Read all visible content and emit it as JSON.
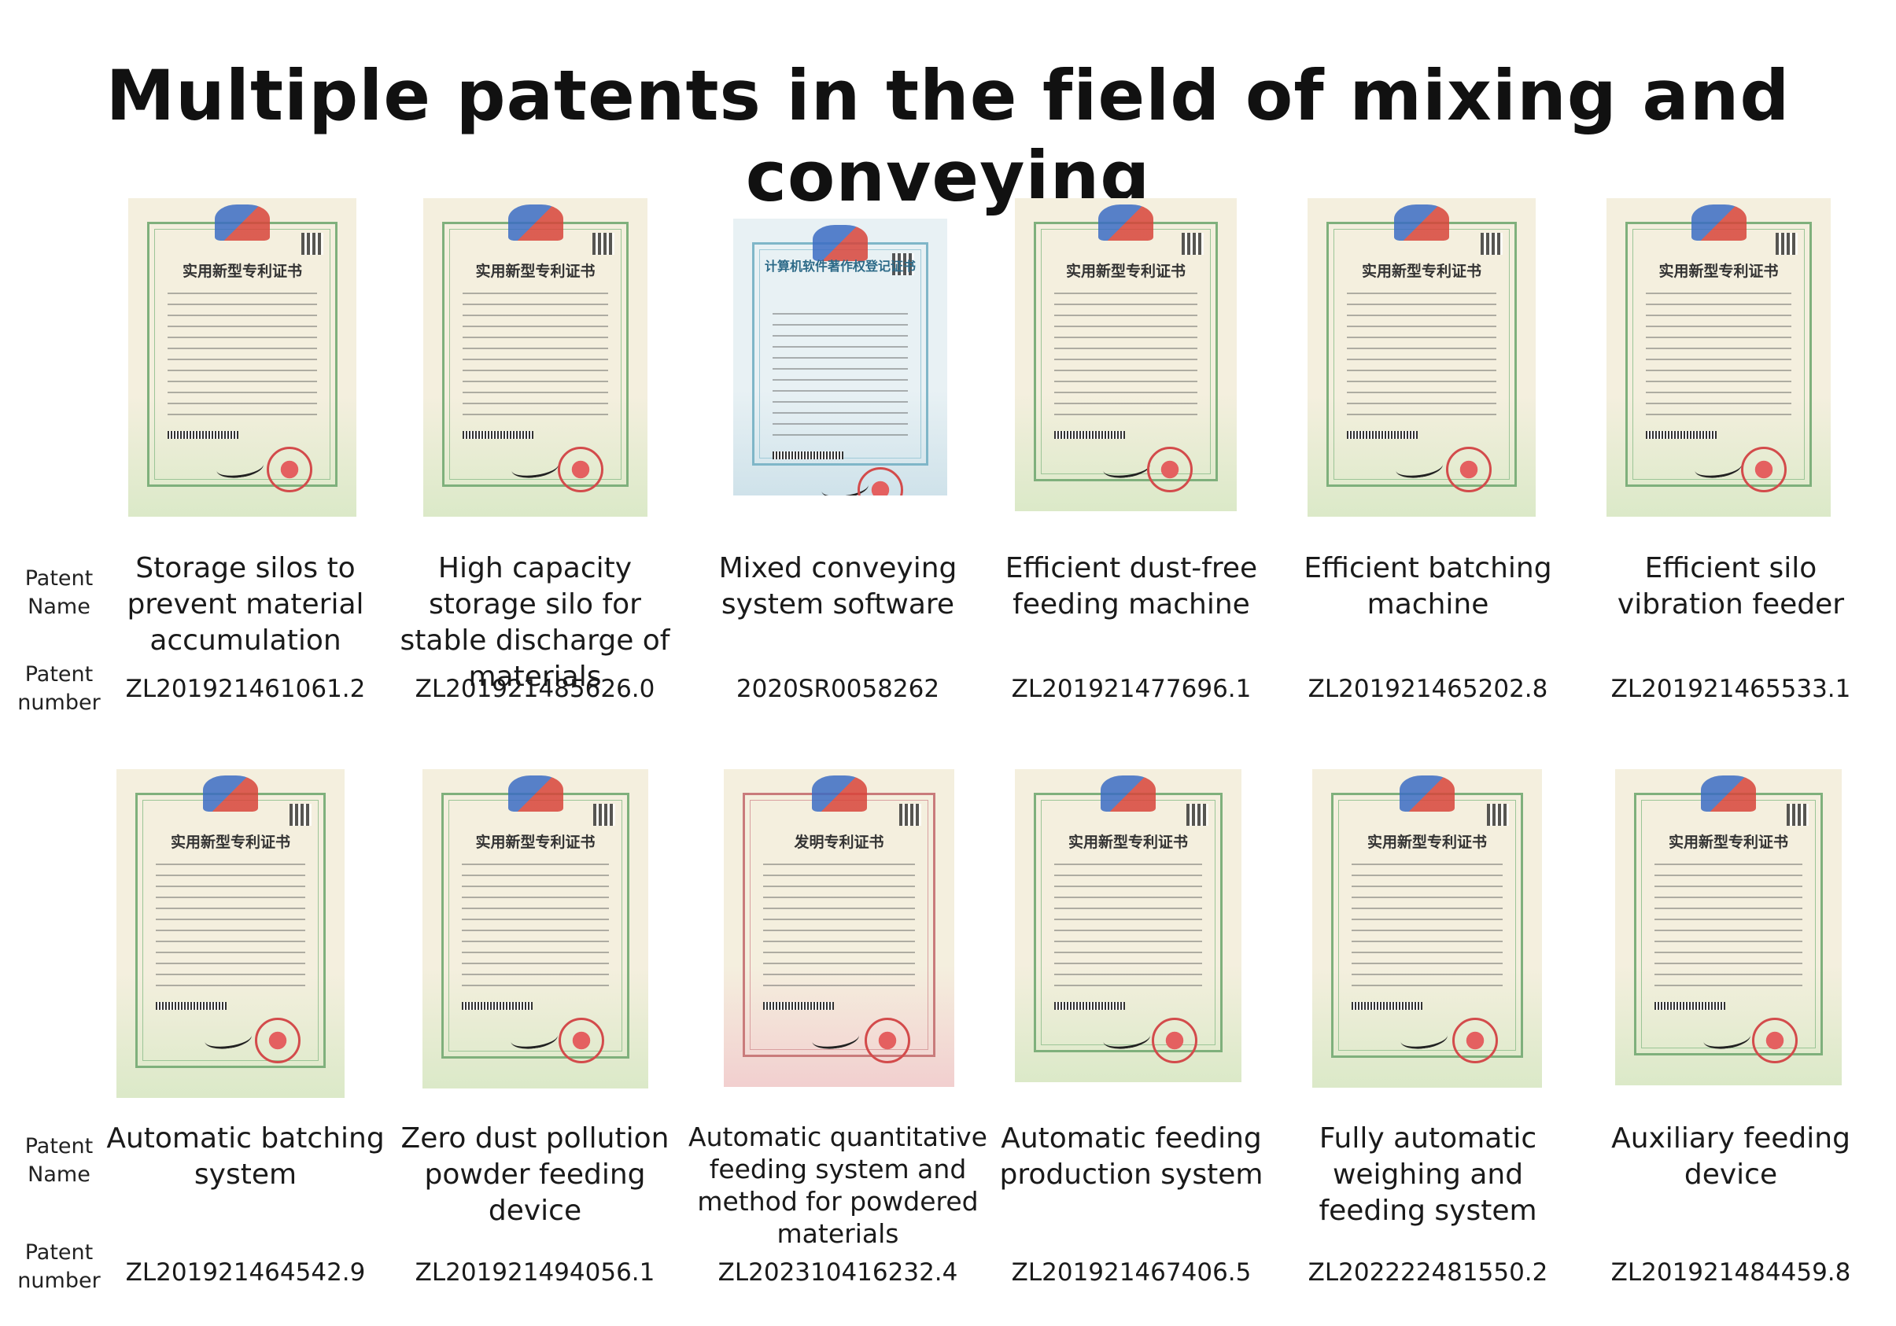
{
  "title": "Multiple patents in the field of mixing and conveying",
  "labels": {
    "name_line1": "Patent",
    "name_line2": "Name",
    "number_line1": "Patent",
    "number_line2": "number"
  },
  "patents": [
    {
      "name": "Storage silos to prevent material accumulation",
      "number": "ZL201921461061.2",
      "cert_title": "实用新型专利证书",
      "cert_style": "utility"
    },
    {
      "name": "High capacity storage silo for stable discharge of materials",
      "number": "ZL201921485626.0",
      "cert_title": "实用新型专利证书",
      "cert_style": "utility"
    },
    {
      "name": "Mixed conveying system software",
      "number": "2020SR0058262",
      "cert_title": "计算机软件著作权登记证书",
      "cert_style": "software"
    },
    {
      "name": "Efficient dust-free feeding machine",
      "number": "ZL201921477696.1",
      "cert_title": "实用新型专利证书",
      "cert_style": "utility"
    },
    {
      "name": "Efficient batching machine",
      "number": "ZL201921465202.8",
      "cert_title": "实用新型专利证书",
      "cert_style": "utility"
    },
    {
      "name": "Efficient silo vibration feeder",
      "number": "ZL201921465533.1",
      "cert_title": "实用新型专利证书",
      "cert_style": "utility"
    },
    {
      "name": "Automatic batching system",
      "number": "ZL201921464542.9",
      "cert_title": "实用新型专利证书",
      "cert_style": "utility"
    },
    {
      "name": "Zero dust pollution powder feeding device",
      "number": "ZL201921494056.1",
      "cert_title": "实用新型专利证书",
      "cert_style": "utility"
    },
    {
      "name": "Automatic quantitative feeding system and method for powdered materials",
      "number": "ZL202310416232.4",
      "cert_title": "发明专利证书",
      "cert_style": "invention"
    },
    {
      "name": "Automatic feeding production system",
      "number": "ZL201921467406.5",
      "cert_title": "实用新型专利证书",
      "cert_style": "utility"
    },
    {
      "name": "Fully automatic weighing and feeding system",
      "number": "ZL202222481550.2",
      "cert_title": "实用新型专利证书",
      "cert_style": "utility"
    },
    {
      "name": "Auxiliary feeding device",
      "number": "ZL201921484459.8",
      "cert_title": "实用新型专利证书",
      "cert_style": "utility"
    }
  ]
}
